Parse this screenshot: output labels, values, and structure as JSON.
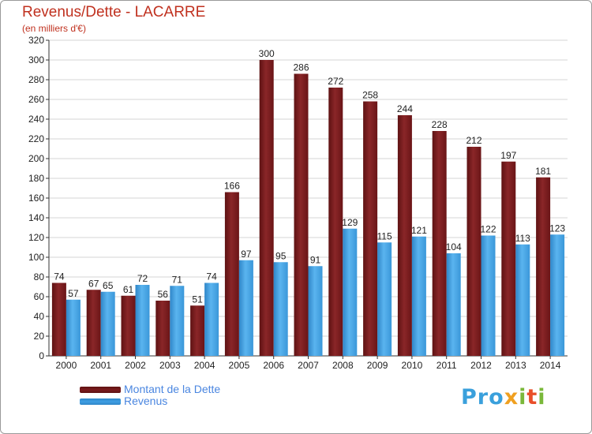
{
  "chart_data": {
    "type": "bar",
    "title": "Revenus/Dette - LACARRE",
    "subtitle": "(en milliers d'€)",
    "categories": [
      "2000",
      "2001",
      "2002",
      "2003",
      "2004",
      "2005",
      "2006",
      "2007",
      "2008",
      "2009",
      "2010",
      "2011",
      "2012",
      "2013",
      "2014"
    ],
    "series": [
      {
        "name": "Montant de la Dette",
        "color": "#7b1a1c",
        "values": [
          74,
          67,
          61,
          56,
          51,
          166,
          300,
          286,
          272,
          258,
          244,
          228,
          212,
          197,
          181
        ]
      },
      {
        "name": "Revenus",
        "color": "#3f9ee3",
        "values": [
          57,
          65,
          72,
          71,
          74,
          97,
          95,
          91,
          129,
          115,
          121,
          104,
          122,
          113,
          123
        ]
      }
    ],
    "ylim": [
      0,
      320
    ],
    "yticks": [
      0,
      20,
      40,
      60,
      80,
      100,
      120,
      140,
      160,
      180,
      200,
      220,
      240,
      260,
      280,
      300,
      320
    ],
    "grid": "horizontal",
    "legend_position": "bottom-left",
    "data_labels": true
  },
  "branding": {
    "logo_text": "Proxiti",
    "logo_colors": [
      "#3aa0dc",
      "#f0a020",
      "#7ab83a",
      "#e94f2a"
    ]
  }
}
